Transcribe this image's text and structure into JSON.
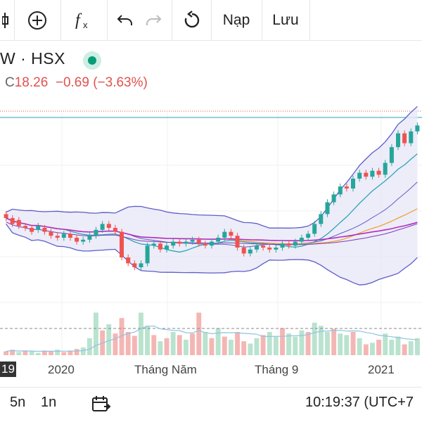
{
  "toolbar": {
    "items": [
      {
        "name": "indicator",
        "icon": "candle-partial-icon"
      },
      {
        "name": "add",
        "icon": "plus-circle-icon"
      },
      {
        "name": "function",
        "icon": "fx-icon"
      },
      {
        "name": "undo",
        "icon": "undo-icon"
      },
      {
        "name": "redo",
        "icon": "redo-icon"
      },
      {
        "name": "reset",
        "icon": "reload-icon"
      }
    ],
    "load_label": "Nạp",
    "save_label": "Lưu"
  },
  "header": {
    "symbol": "W · HSX",
    "close_label": "C",
    "close_value": "18.26",
    "change": "−0.69 (−3.63%)",
    "status_color": "#0a9b78"
  },
  "chart_data": {
    "type": "candlestick",
    "x_tick_labels": [
      "19",
      "2020",
      "Tháng Năm",
      "Tháng 9",
      "2021"
    ],
    "up_color": "#26a69a",
    "down_color": "#ef5350",
    "volume_up_color": "#b9e3cf",
    "volume_down_color": "#f4b6b4",
    "indicator_colors": {
      "bollinger": "#5b5fc7",
      "bollinger_fill": "#e9e7f8",
      "ma_fast": "#2aa6b5",
      "ma_medium": "#f0a532",
      "ma_slow": "#b02ec0",
      "ma_long": "#7a3fb0"
    },
    "candles": [
      {
        "o": 0.52,
        "c": 0.5
      },
      {
        "o": 0.5,
        "c": 0.47
      },
      {
        "o": 0.49,
        "c": 0.46
      },
      {
        "o": 0.46,
        "c": 0.45
      },
      {
        "o": 0.45,
        "c": 0.43
      },
      {
        "o": 0.44,
        "c": 0.46
      },
      {
        "o": 0.45,
        "c": 0.43
      },
      {
        "o": 0.43,
        "c": 0.41
      },
      {
        "o": 0.41,
        "c": 0.4
      },
      {
        "o": 0.4,
        "c": 0.42
      },
      {
        "o": 0.42,
        "c": 0.4
      },
      {
        "o": 0.4,
        "c": 0.38
      },
      {
        "o": 0.38,
        "c": 0.39
      },
      {
        "o": 0.39,
        "c": 0.41
      },
      {
        "o": 0.41,
        "c": 0.44
      },
      {
        "o": 0.44,
        "c": 0.47
      },
      {
        "o": 0.47,
        "c": 0.45
      },
      {
        "o": 0.45,
        "c": 0.43
      },
      {
        "o": 0.43,
        "c": 0.3
      },
      {
        "o": 0.3,
        "c": 0.27
      },
      {
        "o": 0.27,
        "c": 0.25
      },
      {
        "o": 0.25,
        "c": 0.27
      },
      {
        "o": 0.27,
        "c": 0.36
      },
      {
        "o": 0.36,
        "c": 0.37
      },
      {
        "o": 0.37,
        "c": 0.34
      },
      {
        "o": 0.34,
        "c": 0.36
      },
      {
        "o": 0.36,
        "c": 0.38
      },
      {
        "o": 0.38,
        "c": 0.37
      },
      {
        "o": 0.37,
        "c": 0.38
      },
      {
        "o": 0.38,
        "c": 0.39
      },
      {
        "o": 0.39,
        "c": 0.37
      },
      {
        "o": 0.37,
        "c": 0.36
      },
      {
        "o": 0.36,
        "c": 0.38
      },
      {
        "o": 0.38,
        "c": 0.4
      },
      {
        "o": 0.4,
        "c": 0.43
      },
      {
        "o": 0.43,
        "c": 0.41
      },
      {
        "o": 0.41,
        "c": 0.35
      },
      {
        "o": 0.35,
        "c": 0.32
      },
      {
        "o": 0.32,
        "c": 0.34
      },
      {
        "o": 0.34,
        "c": 0.36
      },
      {
        "o": 0.36,
        "c": 0.35
      },
      {
        "o": 0.35,
        "c": 0.34
      },
      {
        "o": 0.34,
        "c": 0.35
      },
      {
        "o": 0.35,
        "c": 0.37
      },
      {
        "o": 0.37,
        "c": 0.36
      },
      {
        "o": 0.36,
        "c": 0.38
      },
      {
        "o": 0.38,
        "c": 0.4
      },
      {
        "o": 0.4,
        "c": 0.42
      },
      {
        "o": 0.42,
        "c": 0.47
      },
      {
        "o": 0.47,
        "c": 0.52
      },
      {
        "o": 0.52,
        "c": 0.58
      },
      {
        "o": 0.58,
        "c": 0.62
      },
      {
        "o": 0.62,
        "c": 0.66
      },
      {
        "o": 0.66,
        "c": 0.65
      },
      {
        "o": 0.65,
        "c": 0.7
      },
      {
        "o": 0.7,
        "c": 0.73
      },
      {
        "o": 0.73,
        "c": 0.71
      },
      {
        "o": 0.71,
        "c": 0.74
      },
      {
        "o": 0.74,
        "c": 0.72
      },
      {
        "o": 0.72,
        "c": 0.78
      },
      {
        "o": 0.78,
        "c": 0.86
      },
      {
        "o": 0.86,
        "c": 0.93
      },
      {
        "o": 0.93,
        "c": 0.88
      },
      {
        "o": 0.88,
        "c": 0.94
      },
      {
        "o": 0.94,
        "c": 0.97
      }
    ],
    "volumes": [
      {
        "v": 0.05,
        "up": false
      },
      {
        "v": 0.07,
        "up": false
      },
      {
        "v": 0.04,
        "up": true
      },
      {
        "v": 0.06,
        "up": false
      },
      {
        "v": 0.05,
        "up": true
      },
      {
        "v": 0.03,
        "up": true
      },
      {
        "v": 0.06,
        "up": false
      },
      {
        "v": 0.05,
        "up": false
      },
      {
        "v": 0.07,
        "up": true
      },
      {
        "v": 0.04,
        "up": false
      },
      {
        "v": 0.06,
        "up": false
      },
      {
        "v": 0.08,
        "up": false
      },
      {
        "v": 0.1,
        "up": true
      },
      {
        "v": 0.22,
        "up": true
      },
      {
        "v": 0.55,
        "up": true
      },
      {
        "v": 0.32,
        "up": false
      },
      {
        "v": 0.4,
        "up": true
      },
      {
        "v": 0.28,
        "up": false
      },
      {
        "v": 0.48,
        "up": false
      },
      {
        "v": 0.3,
        "up": false
      },
      {
        "v": 0.25,
        "up": false
      },
      {
        "v": 0.55,
        "up": true
      },
      {
        "v": 0.38,
        "up": true
      },
      {
        "v": 0.26,
        "up": false
      },
      {
        "v": 0.18,
        "up": true
      },
      {
        "v": 0.22,
        "up": false
      },
      {
        "v": 0.3,
        "up": true
      },
      {
        "v": 0.26,
        "up": false
      },
      {
        "v": 0.2,
        "up": true
      },
      {
        "v": 0.28,
        "up": false
      },
      {
        "v": 0.55,
        "up": false
      },
      {
        "v": 0.3,
        "up": true
      },
      {
        "v": 0.22,
        "up": false
      },
      {
        "v": 0.35,
        "up": true
      },
      {
        "v": 0.24,
        "up": false
      },
      {
        "v": 0.2,
        "up": true
      },
      {
        "v": 0.3,
        "up": false
      },
      {
        "v": 0.18,
        "up": false
      },
      {
        "v": 0.15,
        "up": true
      },
      {
        "v": 0.22,
        "up": true
      },
      {
        "v": 0.26,
        "up": false
      },
      {
        "v": 0.3,
        "up": true
      },
      {
        "v": 0.24,
        "up": true
      },
      {
        "v": 0.35,
        "up": false
      },
      {
        "v": 0.28,
        "up": true
      },
      {
        "v": 0.24,
        "up": true
      },
      {
        "v": 0.32,
        "up": true
      },
      {
        "v": 0.3,
        "up": false
      },
      {
        "v": 0.42,
        "up": true
      },
      {
        "v": 0.38,
        "up": true
      },
      {
        "v": 0.3,
        "up": true
      },
      {
        "v": 0.34,
        "up": false
      },
      {
        "v": 0.28,
        "up": true
      },
      {
        "v": 0.26,
        "up": true
      },
      {
        "v": 0.3,
        "up": false
      },
      {
        "v": 0.22,
        "up": true
      },
      {
        "v": 0.14,
        "up": false
      },
      {
        "v": 0.16,
        "up": true
      },
      {
        "v": 0.2,
        "up": false
      },
      {
        "v": 0.28,
        "up": true
      },
      {
        "v": 0.2,
        "up": true
      },
      {
        "v": 0.24,
        "up": true
      },
      {
        "v": 0.14,
        "up": false
      },
      {
        "v": 0.18,
        "up": true
      },
      {
        "v": 0.22,
        "up": true
      }
    ]
  },
  "bottom": {
    "range_5n": "5n",
    "range_1n": "1n",
    "time": "10:19:37 (UTC+7"
  }
}
